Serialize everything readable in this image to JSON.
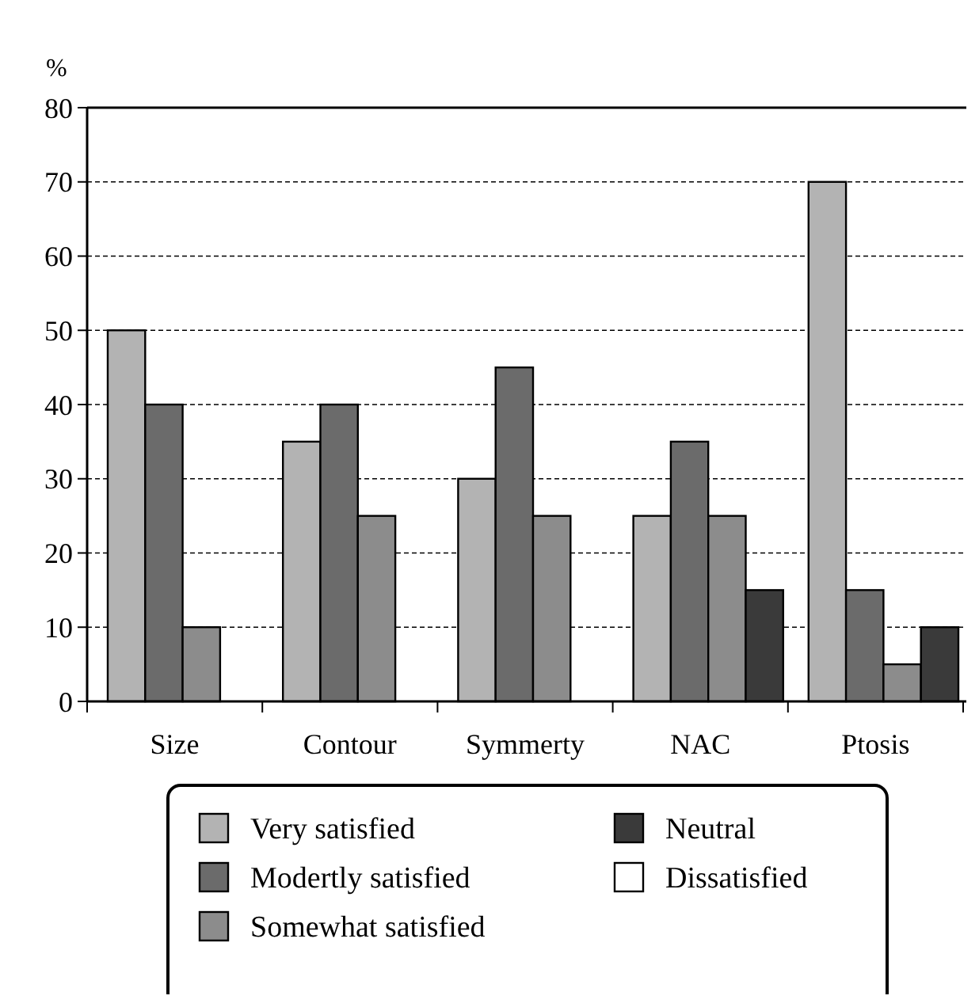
{
  "chart_data": {
    "type": "bar",
    "ylabel": "%",
    "categories": [
      "Size",
      "Contour",
      "Symmerty",
      "NAC",
      "Ptosis"
    ],
    "series": [
      {
        "name": "Very satisfied",
        "color": "#b3b3b3",
        "values": [
          50,
          35,
          30,
          25,
          70
        ]
      },
      {
        "name": "Modertly satisfied",
        "color": "#6b6b6b",
        "values": [
          40,
          40,
          45,
          35,
          15
        ]
      },
      {
        "name": "Somewhat satisfied",
        "color": "#8c8c8c",
        "values": [
          10,
          25,
          25,
          25,
          5
        ]
      },
      {
        "name": "Neutral",
        "color": "#3a3a3a",
        "values": [
          null,
          null,
          null,
          15,
          10
        ]
      },
      {
        "name": "Dissatisfied",
        "color": "#ffffff",
        "values": [
          null,
          null,
          null,
          null,
          null
        ]
      }
    ],
    "ylim": [
      0,
      80
    ],
    "yticks": [
      0,
      10,
      20,
      30,
      40,
      50,
      60,
      70,
      80
    ],
    "grid": "y",
    "legend": "bottom"
  }
}
